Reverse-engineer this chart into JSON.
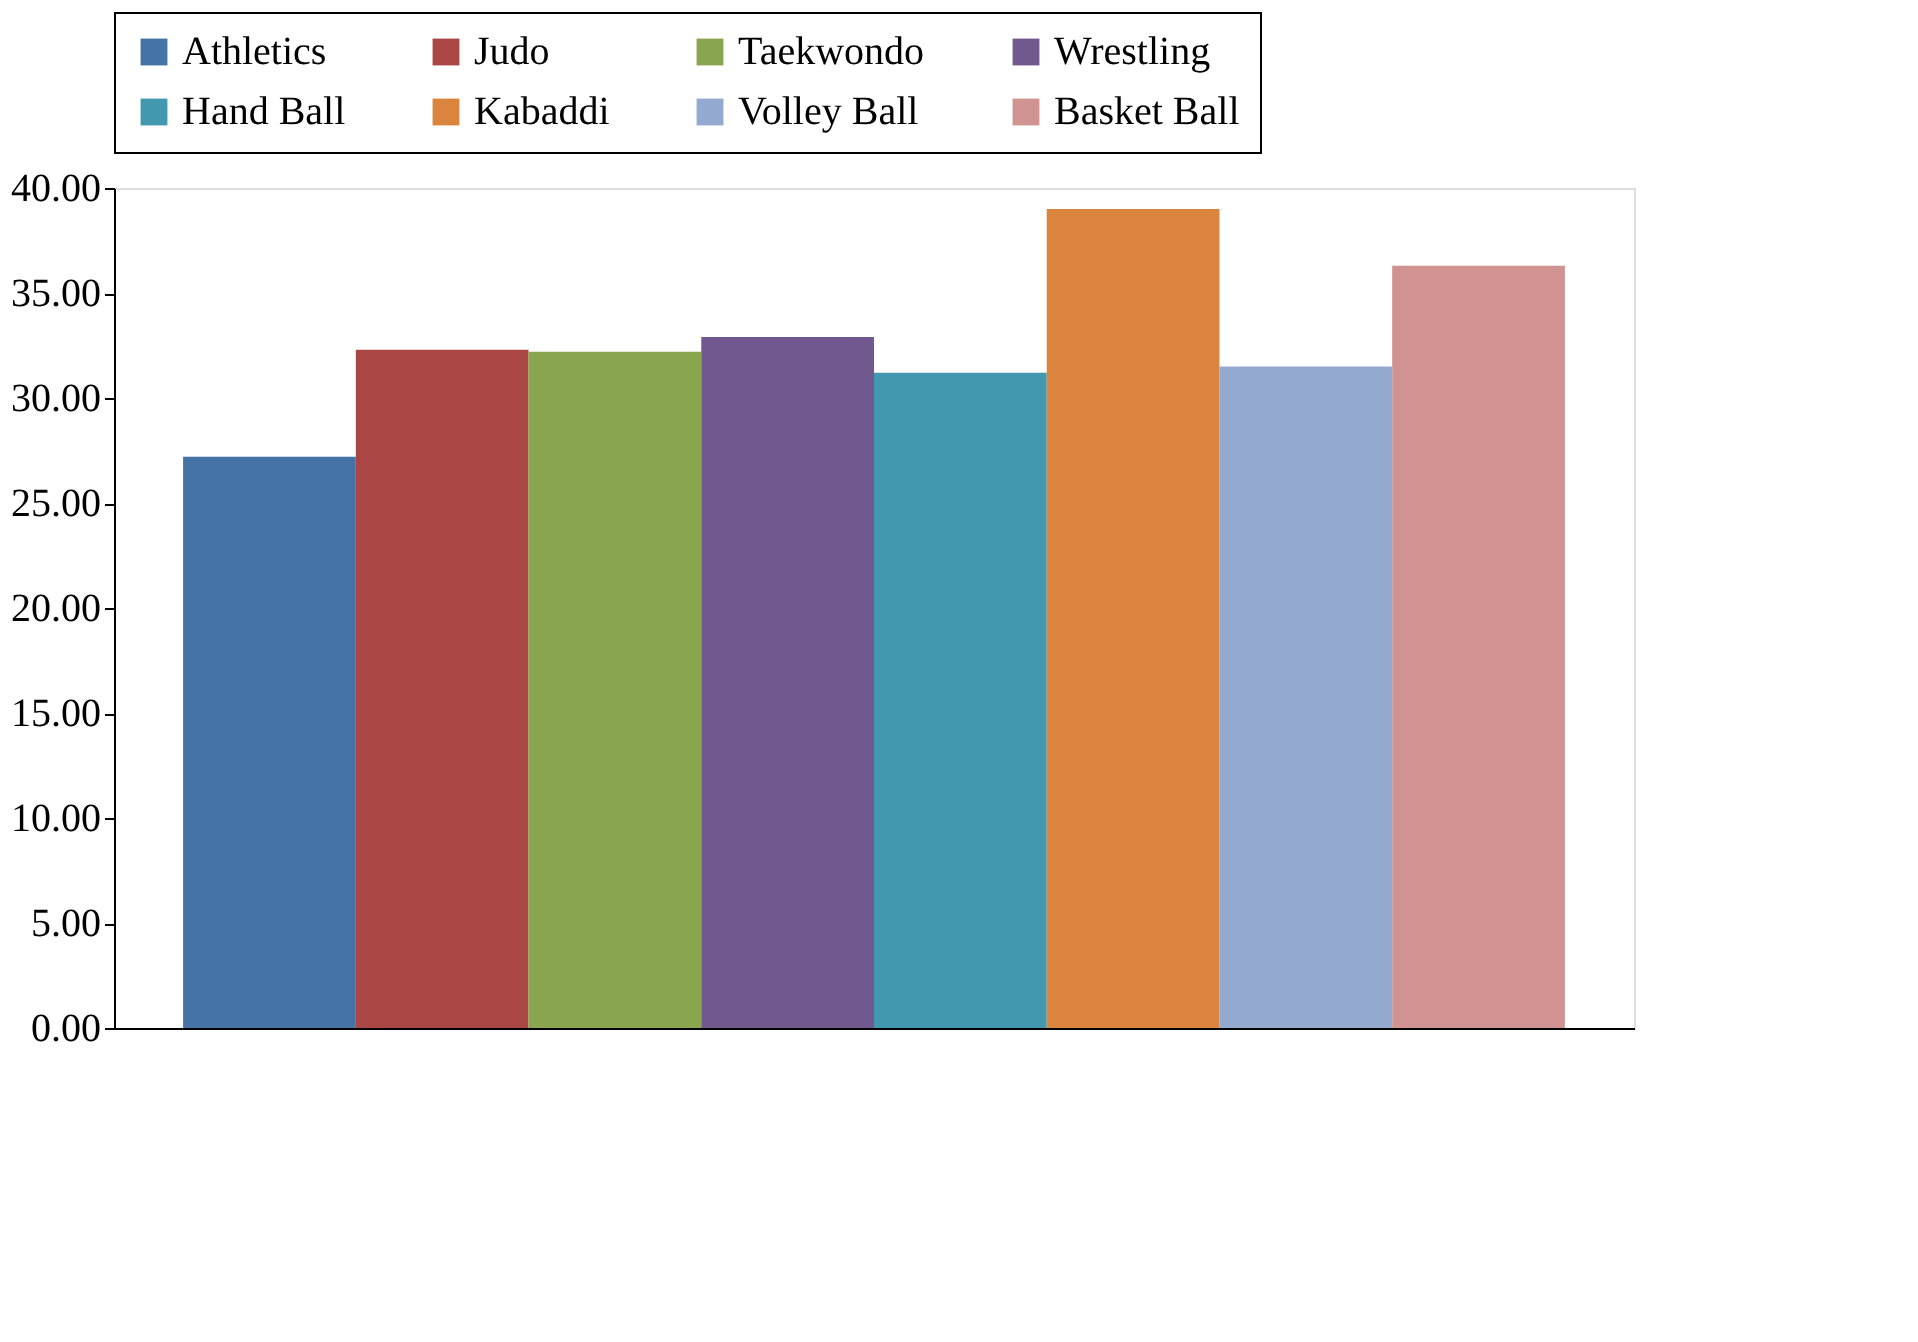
{
  "chart_data": {
    "type": "bar",
    "categories": [
      null
    ],
    "series": [
      {
        "name": "Athletics",
        "color": "#4572a7",
        "values": [
          27.2
        ]
      },
      {
        "name": "Judo",
        "color": "#aa4643",
        "values": [
          32.3
        ]
      },
      {
        "name": "Taekwondo",
        "color": "#89a54e",
        "values": [
          32.2
        ]
      },
      {
        "name": "Wrestling",
        "color": "#71588f",
        "values": [
          32.9
        ]
      },
      {
        "name": "Hand Ball",
        "color": "#4198af",
        "values": [
          31.2
        ]
      },
      {
        "name": "Kabaddi",
        "color": "#db843d",
        "values": [
          39.0
        ]
      },
      {
        "name": "Volley Ball",
        "color": "#93a9cf",
        "values": [
          31.5
        ]
      },
      {
        "name": "Basket Ball",
        "color": "#d19392",
        "values": [
          36.3
        ]
      }
    ],
    "ylim": [
      0,
      40
    ],
    "yticks": [
      {
        "value": 0,
        "label": "0.00"
      },
      {
        "value": 5,
        "label": "5.00"
      },
      {
        "value": 10,
        "label": "10.00"
      },
      {
        "value": 15,
        "label": "15.00"
      },
      {
        "value": 20,
        "label": "20.00"
      },
      {
        "value": 25,
        "label": "25.00"
      },
      {
        "value": 30,
        "label": "30.00"
      },
      {
        "value": 35,
        "label": "35.00"
      },
      {
        "value": 40,
        "label": "40.00"
      }
    ],
    "tick_labels": "y",
    "grid": false,
    "legend": "top"
  }
}
